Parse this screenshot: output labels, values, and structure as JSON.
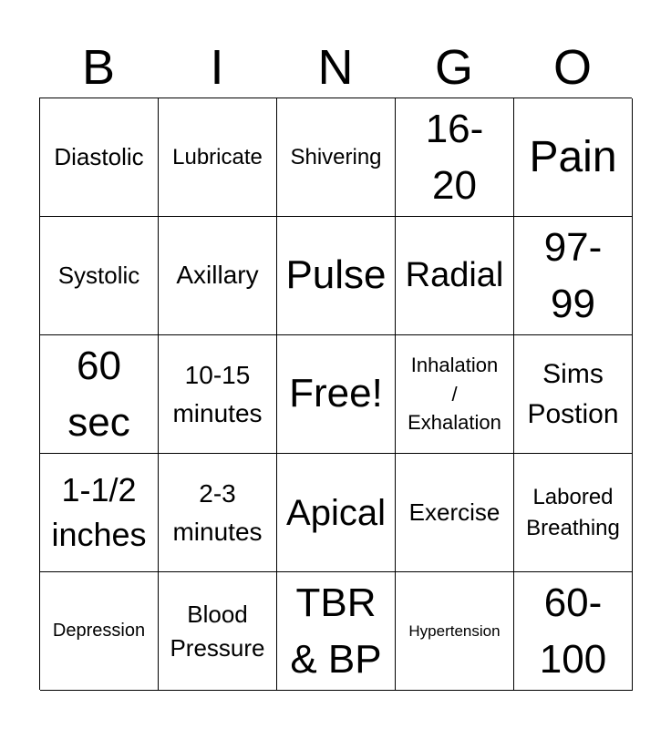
{
  "header": [
    "B",
    "I",
    "N",
    "G",
    "O"
  ],
  "cells": [
    "Diastolic",
    "Lubricate",
    "Shivering",
    "16-\n20",
    "Pain",
    "Systolic",
    "Axillary",
    "Pulse",
    "Radial",
    "97-\n99",
    "60\nsec",
    "10-15\nminutes",
    "Free!",
    "Inhalation\n/\nExhalation",
    "Sims\nPostion",
    "1-1/2\ninches",
    "2-3\nminutes",
    "Apical",
    "Exercise",
    "Labored\nBreathing",
    "Depression",
    "Blood\nPressure",
    "TBR\n& BP",
    "Hypertension",
    "60-\n100"
  ]
}
